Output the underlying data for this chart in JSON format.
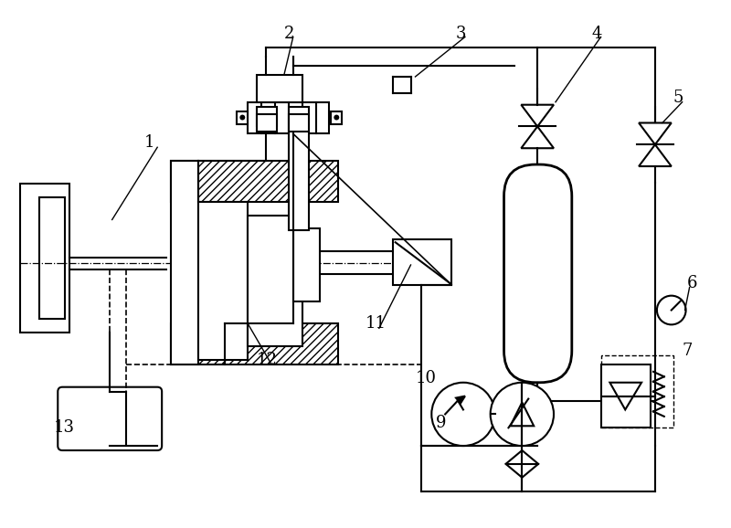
{
  "bg_color": "#ffffff",
  "line_color": "#000000",
  "lw": 1.5,
  "fig_width": 8.0,
  "fig_height": 5.78,
  "dpi": 100
}
